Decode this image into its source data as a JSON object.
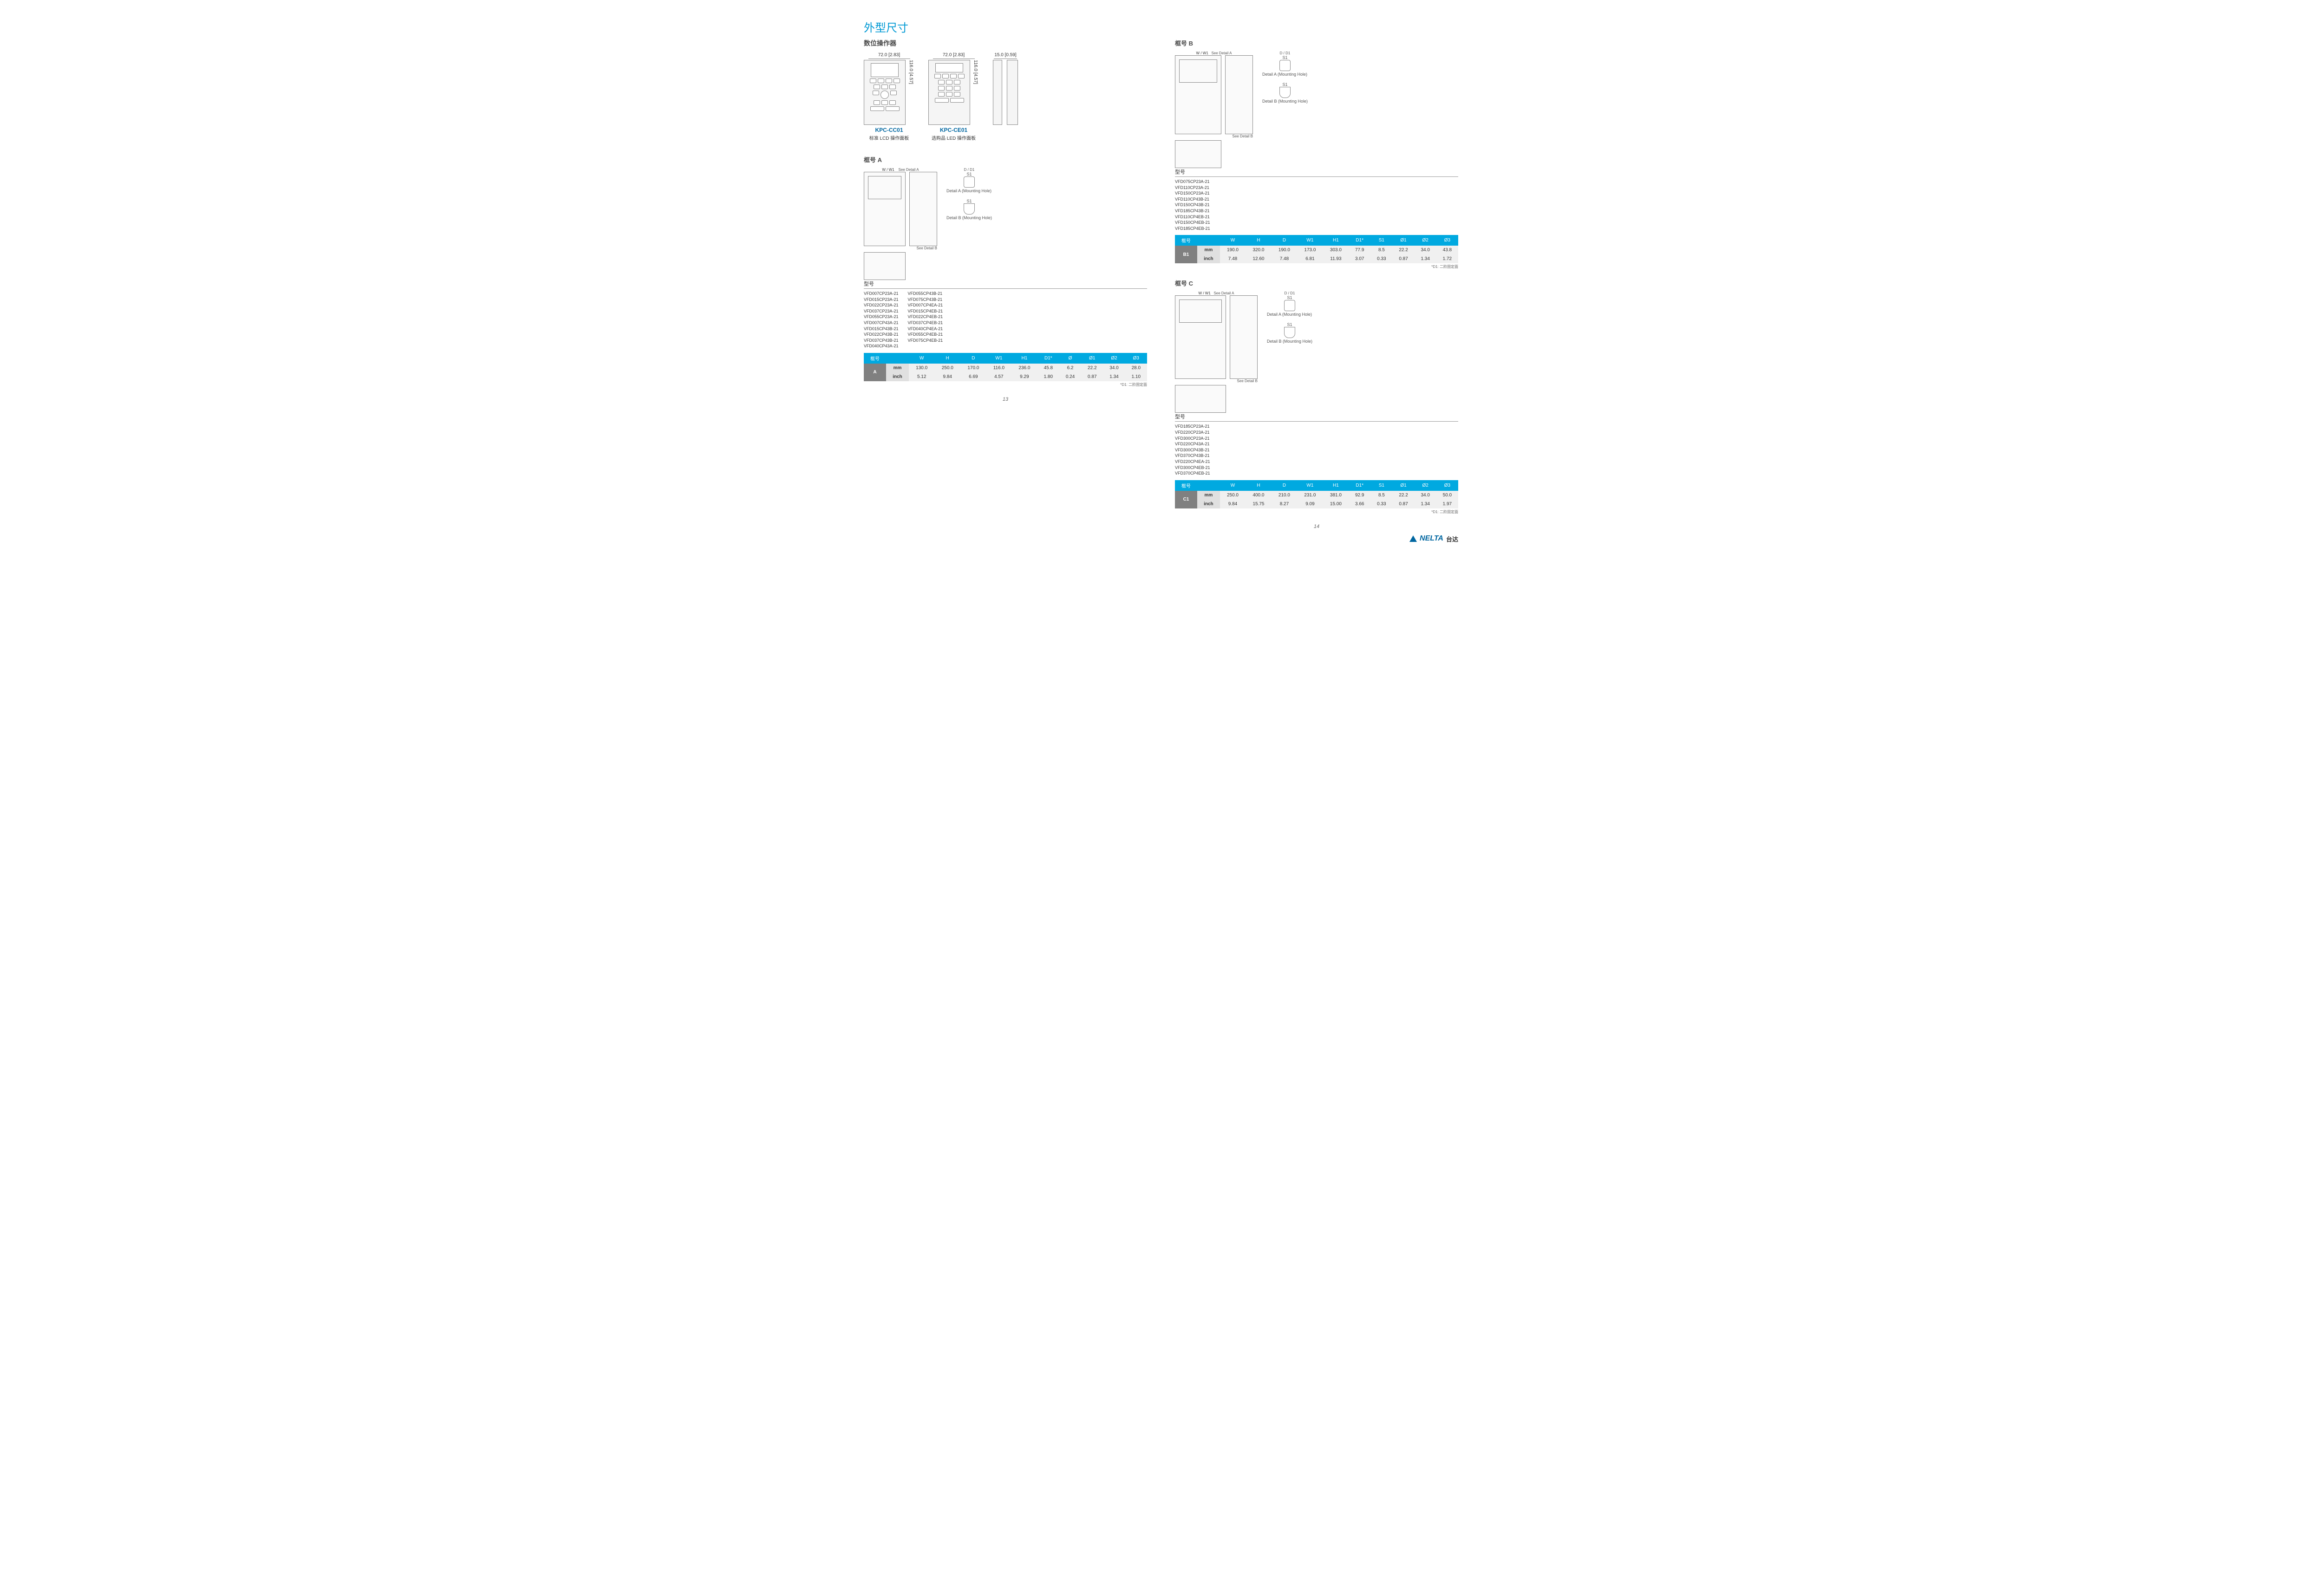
{
  "page": {
    "title": "外型尺寸",
    "subtitle_keypad": "数位操作器",
    "page_left": "13",
    "page_right": "14",
    "footnote": "*D1: 二阶固定面"
  },
  "brand": {
    "name": "NELTA",
    "suffix": "台达"
  },
  "keypads": {
    "width_dim": "72.0 [2.83]",
    "height_dim": "116.0 [4.57]",
    "side_dim": "15.0 [0.59]",
    "cc01": {
      "name": "KPC-CC01",
      "desc": "标准 LCD 操作面板"
    },
    "ce01": {
      "name": "KPC-CE01",
      "desc": "选购品 LED 操作面板"
    }
  },
  "common": {
    "model_label": "型号",
    "see_detail_a": "See Detail A",
    "see_detail_b": "See Detail B",
    "detail_a": "Detail A (Mounting Hole)",
    "detail_b": "Detail B (Mounting Hole)",
    "s1": "S1",
    "w": "W",
    "w1": "W1",
    "d": "D",
    "d1l": "D1",
    "h": "H",
    "h1": "H1"
  },
  "frameA": {
    "title": "框号 A",
    "models_col1": [
      "VFD007CP23A-21",
      "VFD015CP23A-21",
      "VFD022CP23A-21",
      "VFD037CP23A-21",
      "VFD055CP23A-21",
      "VFD007CP43A-21",
      "VFD015CP43B-21",
      "VFD022CP43B-21",
      "VFD037CP43B-21",
      "VFD040CP43A-21"
    ],
    "models_col2": [
      "VFD055CP43B-21",
      "VFD075CP43B-21",
      "VFD007CP4EA-21",
      "VFD015CP4EB-21",
      "VFD022CP4EB-21",
      "VFD037CP4EB-21",
      "VFD040CP4EA-21",
      "VFD055CP4EB-21",
      "VFD075CP4EB-21"
    ],
    "table": {
      "headers": [
        "框号",
        "",
        "W",
        "H",
        "D",
        "W1",
        "H1",
        "D1*",
        "Ø",
        "Ø1",
        "Ø2",
        "Ø3"
      ],
      "frame_id": "A",
      "rows": [
        {
          "unit": "mm",
          "vals": [
            "130.0",
            "250.0",
            "170.0",
            "116.0",
            "236.0",
            "45.8",
            "6.2",
            "22.2",
            "34.0",
            "28.0"
          ]
        },
        {
          "unit": "inch",
          "vals": [
            "5.12",
            "9.84",
            "6.69",
            "4.57",
            "9.29",
            "1.80",
            "0.24",
            "0.87",
            "1.34",
            "1.10"
          ]
        }
      ]
    }
  },
  "frameB": {
    "title": "框号 B",
    "models": [
      "VFD075CP23A-21",
      "VFD110CP23A-21",
      "VFD150CP23A-21",
      "VFD110CP43B-21",
      "VFD150CP43B-21",
      "VFD185CP43B-21",
      "VFD110CP4EB-21",
      "VFD150CP4EB-21",
      "VFD185CP4EB-21"
    ],
    "table": {
      "headers": [
        "框号",
        "",
        "W",
        "H",
        "D",
        "W1",
        "H1",
        "D1*",
        "S1",
        "Ø1",
        "Ø2",
        "Ø3"
      ],
      "frame_id": "B1",
      "rows": [
        {
          "unit": "mm",
          "vals": [
            "190.0",
            "320.0",
            "190.0",
            "173.0",
            "303.0",
            "77.9",
            "8.5",
            "22.2",
            "34.0",
            "43.8"
          ]
        },
        {
          "unit": "inch",
          "vals": [
            "7.48",
            "12.60",
            "7.48",
            "6.81",
            "11.93",
            "3.07",
            "0.33",
            "0.87",
            "1.34",
            "1.72"
          ]
        }
      ]
    }
  },
  "frameC": {
    "title": "框号 C",
    "models": [
      "VFD185CP23A-21",
      "VFD220CP23A-21",
      "VFD300CP23A-21",
      "VFD220CP43A-21",
      "VFD300CP43B-21",
      "VFD370CP43B-21",
      "VFD220CP4EA-21",
      "VFD300CP4EB-21",
      "VFD370CP4EB-21"
    ],
    "table": {
      "headers": [
        "框号",
        "",
        "W",
        "H",
        "D",
        "W1",
        "H1",
        "D1*",
        "S1",
        "Ø1",
        "Ø2",
        "Ø3"
      ],
      "frame_id": "C1",
      "rows": [
        {
          "unit": "mm",
          "vals": [
            "250.0",
            "400.0",
            "210.0",
            "231.0",
            "381.0",
            "92.9",
            "8.5",
            "22.2",
            "34.0",
            "50.0"
          ]
        },
        {
          "unit": "inch",
          "vals": [
            "9.84",
            "15.75",
            "8.27",
            "9.09",
            "15.00",
            "3.66",
            "0.33",
            "0.87",
            "1.34",
            "1.97"
          ]
        }
      ]
    }
  },
  "colors": {
    "header_bg": "#00a9e0",
    "frame_cell": "#808080",
    "title": "#0099d4",
    "brand": "#0066a0"
  }
}
